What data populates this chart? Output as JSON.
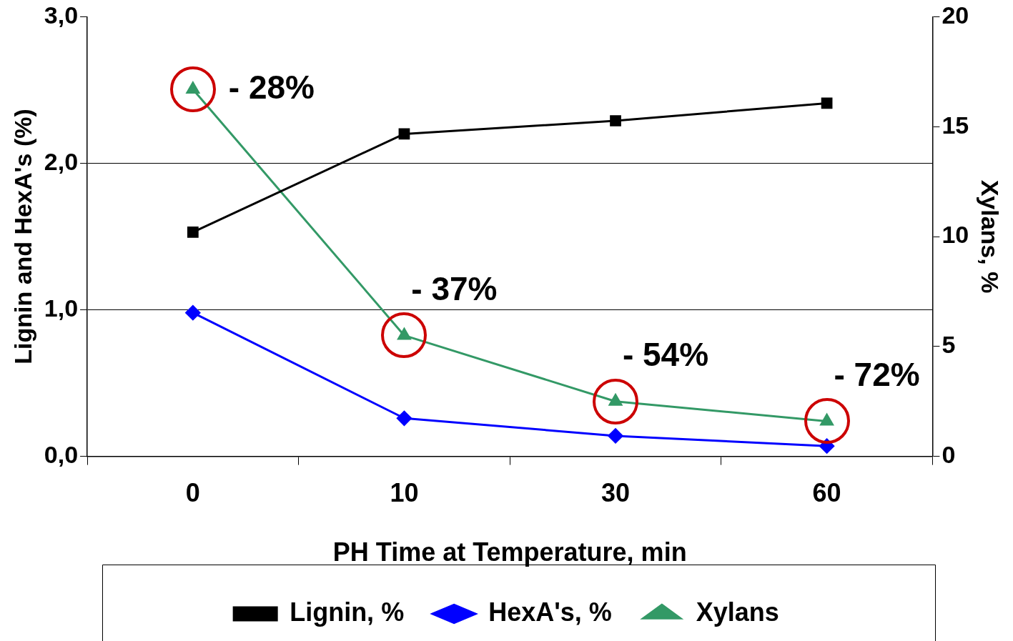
{
  "chart_data": {
    "type": "line",
    "xlabel": "PH Time at Temperature, min",
    "ylabel": "Lignin and HexA's (%)",
    "y2label": "Xylans, %",
    "categories": [
      "0",
      "10",
      "30",
      "60"
    ],
    "series": [
      {
        "name": "Lignin, %",
        "color": "#000000",
        "marker": "square",
        "values": [
          1.53,
          2.2,
          2.29,
          2.41
        ]
      },
      {
        "name": "HexA's, %",
        "color": "#0000ff",
        "marker": "diamond",
        "values": [
          0.98,
          0.26,
          0.14,
          0.07
        ]
      },
      {
        "name": "Xylans",
        "color": "#339966",
        "marker": "triangle",
        "axis": "y2",
        "values": [
          16.7,
          5.5,
          2.5,
          1.6
        ]
      }
    ],
    "ylim": [
      0,
      3
    ],
    "yticks": [
      {
        "value": 0,
        "label": "0,0"
      },
      {
        "value": 1,
        "label": "1,0"
      },
      {
        "value": 2,
        "label": "2,0"
      },
      {
        "value": 3,
        "label": "3,0"
      }
    ],
    "y2lim": [
      0,
      20
    ],
    "y2ticks": [
      0,
      5,
      10,
      15,
      20
    ],
    "grid": "y",
    "legend": "bottom",
    "annotations": [
      "- 28%",
      "- 37%",
      "- 54%",
      "- 72%"
    ]
  }
}
